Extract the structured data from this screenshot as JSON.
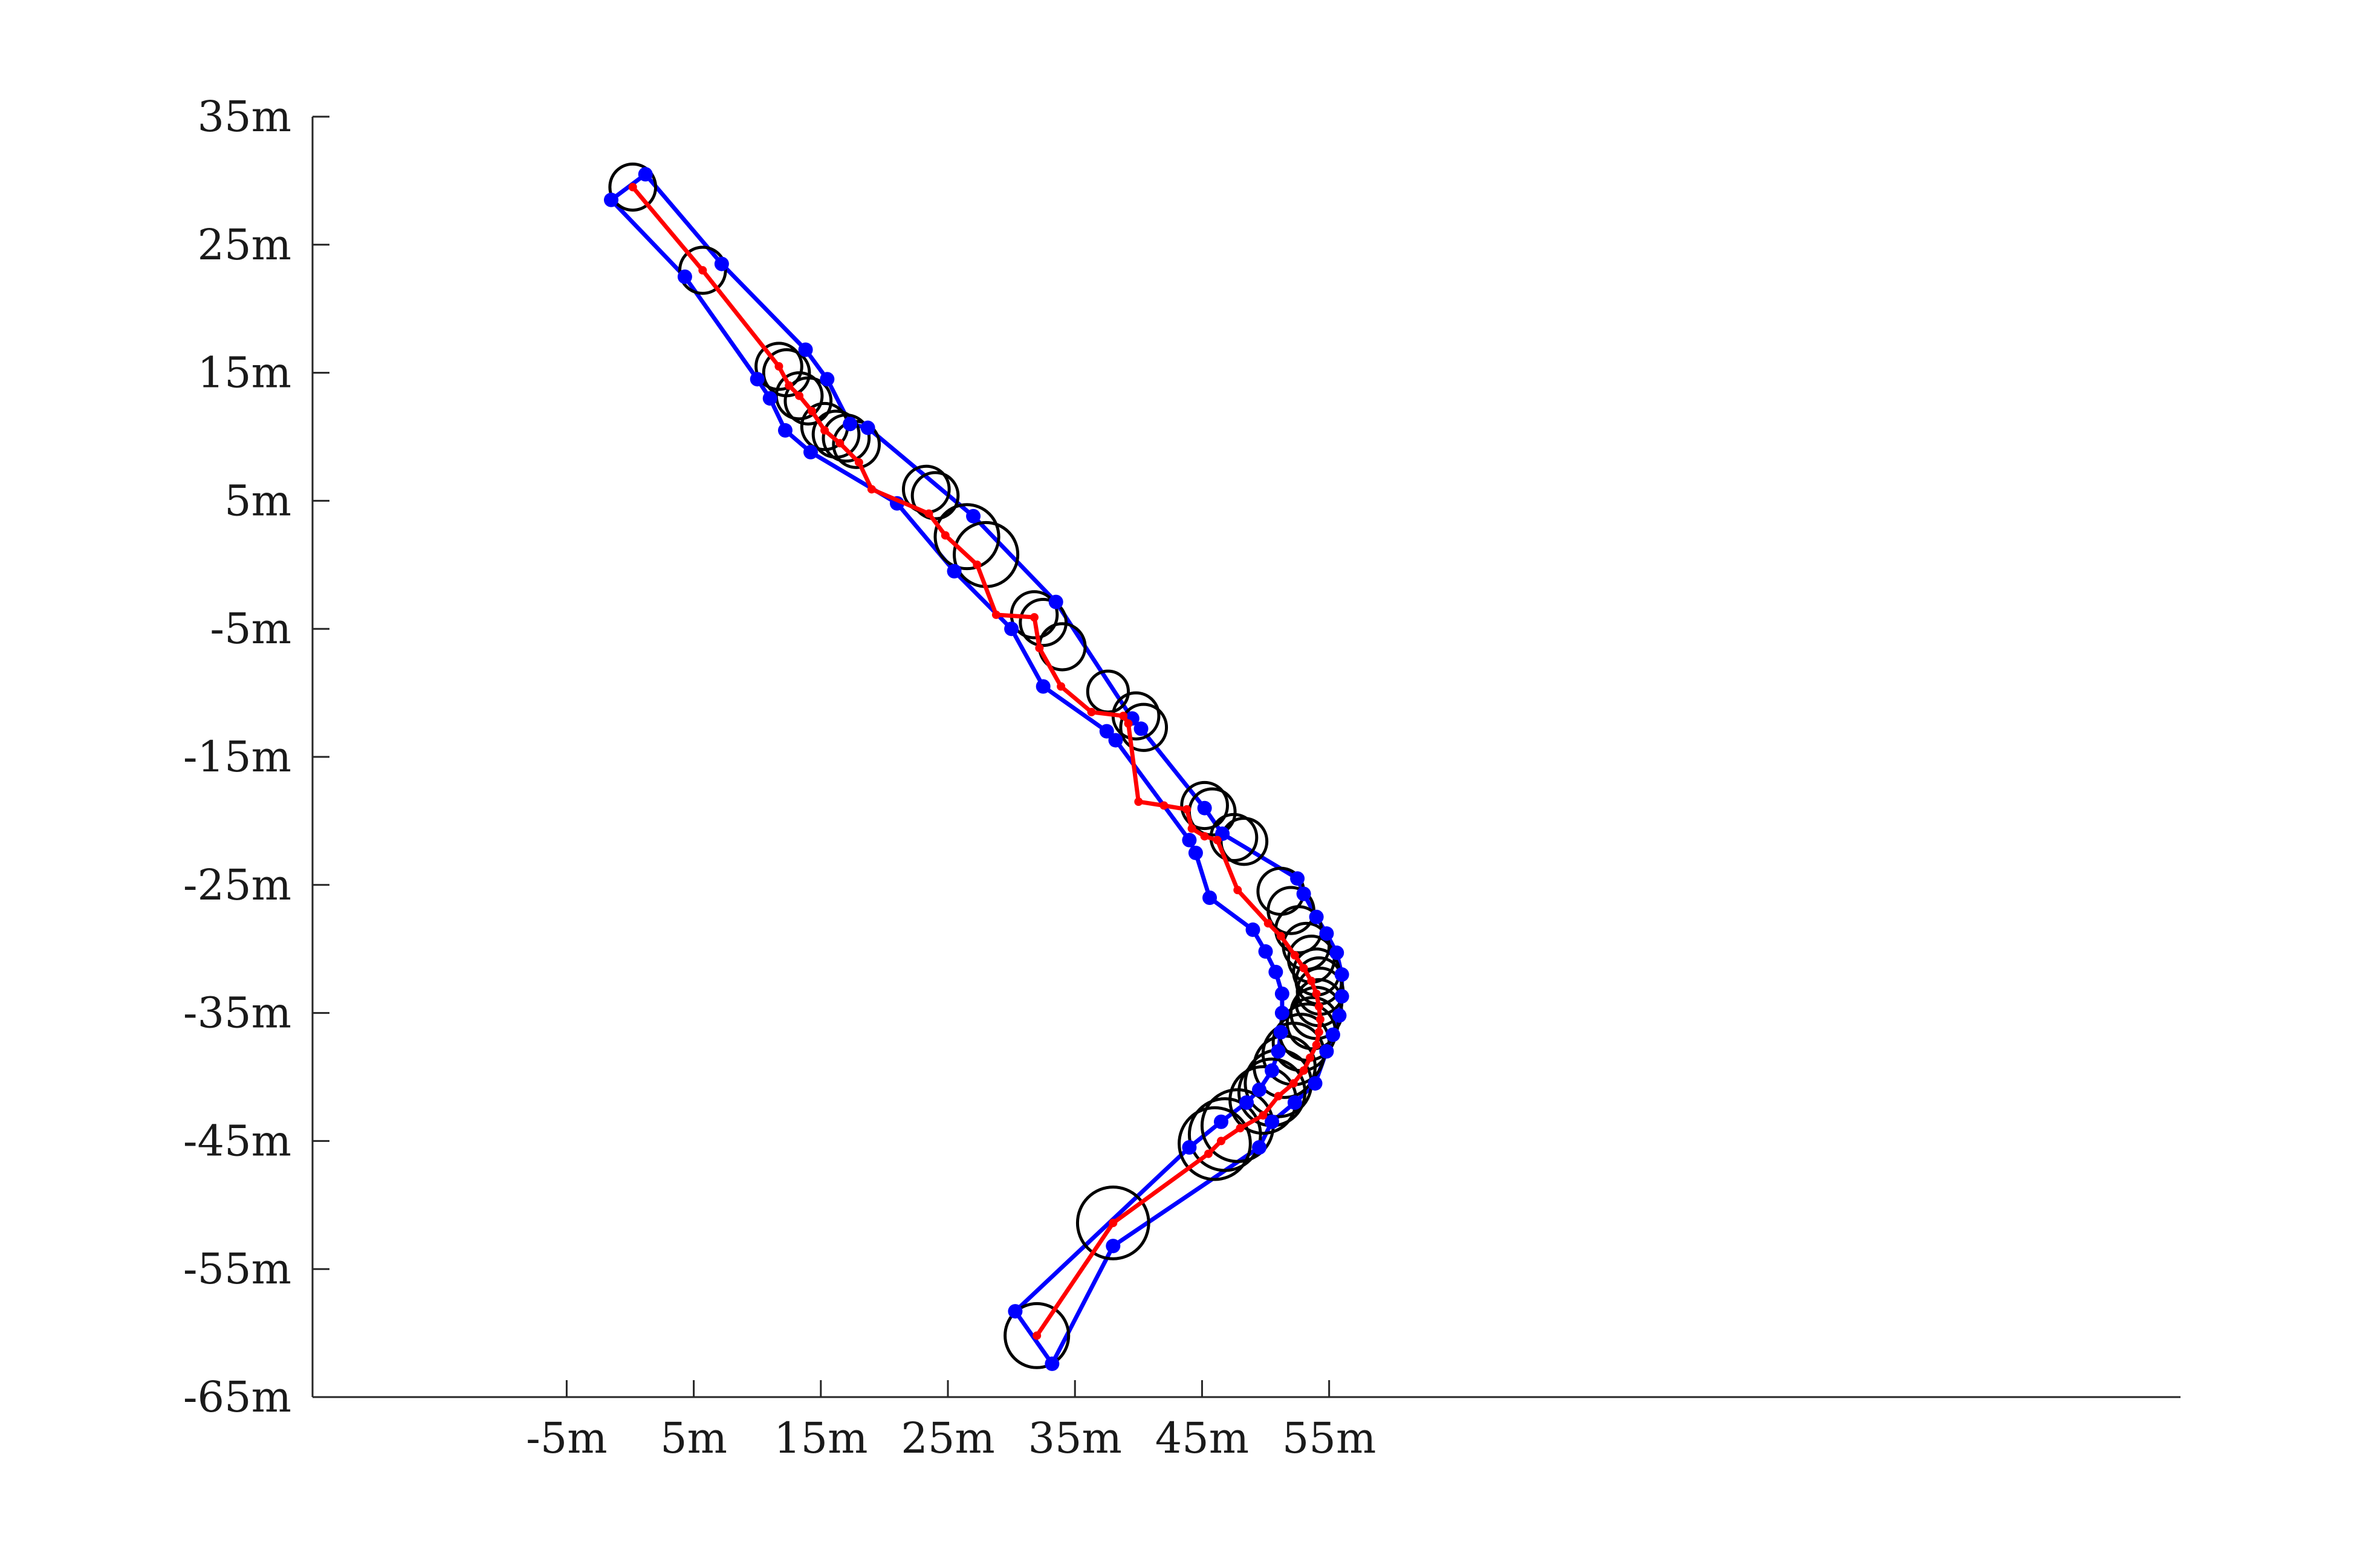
{
  "chart_data": {
    "type": "line",
    "title": "",
    "xlabel": "",
    "ylabel": "",
    "xlim": [
      -25,
      122
    ],
    "ylim": [
      -65,
      35
    ],
    "x_ticks": [
      -5,
      5,
      15,
      25,
      35,
      45,
      55
    ],
    "x_tick_labels": [
      "-5m",
      "5m",
      "15m",
      "25m",
      "35m",
      "45m",
      "55m"
    ],
    "y_ticks": [
      35,
      25,
      15,
      5,
      -5,
      -15,
      -25,
      -35,
      -45,
      -55,
      -65
    ],
    "y_tick_labels": [
      "35m",
      "25m",
      "15m",
      "5m",
      "-5m",
      "-15m",
      "-25m",
      "-35m",
      "-45m",
      "-55m",
      "-65m"
    ],
    "grid": false,
    "colors": {
      "centerline": "#ff0000",
      "boundary": "#0000ff",
      "circle": "#000000",
      "axis": "#262626"
    },
    "series": [
      {
        "role": "centerline",
        "x": [
          0.2,
          5.7,
          11.7,
          12.5,
          13.3,
          14.3,
          15.3,
          16.5,
          18.0,
          19.0,
          23.5,
          24.8,
          27.3,
          28.8,
          31.8,
          32.2,
          33.9,
          36.3,
          38.8,
          39.2,
          40.0,
          42.0,
          43.8,
          44.2,
          45.2,
          46.2,
          47.8,
          50.2,
          51.2,
          52.3,
          53.0,
          53.6,
          54.0,
          54.2,
          54.3,
          54.2,
          54.0,
          53.5,
          53.0,
          52.2,
          51.0,
          49.8,
          48.0,
          46.5,
          45.5,
          38.0,
          32.0
        ],
        "y": [
          29.5,
          23.0,
          15.5,
          14.0,
          13.2,
          12.0,
          10.5,
          9.5,
          8.0,
          5.9,
          4.0,
          2.3,
          0.0,
          -3.9,
          -4.1,
          -6.5,
          -9.5,
          -11.5,
          -11.8,
          -12.4,
          -18.5,
          -18.8,
          -19.1,
          -20.6,
          -21.2,
          -21.5,
          -25.4,
          -28.0,
          -29.0,
          -30.5,
          -31.5,
          -32.5,
          -33.5,
          -34.5,
          -35.5,
          -36.5,
          -37.5,
          -38.5,
          -39.5,
          -40.5,
          -41.5,
          -43.0,
          -44.0,
          -45.0,
          -46.0,
          -51.4,
          -60.2
        ]
      },
      {
        "role": "boundary-left",
        "x": [
          -1.5,
          4.3,
          10.0,
          11.0,
          12.2,
          14.2,
          21.0,
          25.5,
          30.0,
          32.5,
          37.5,
          38.2,
          44.0,
          44.5,
          45.6,
          49.0,
          50.0,
          50.8,
          51.3,
          51.3,
          51.2,
          51.0,
          50.5,
          49.5,
          48.5,
          46.5,
          44.0,
          30.3
        ],
        "y": [
          28.5,
          22.5,
          14.5,
          13.0,
          10.5,
          8.8,
          4.8,
          -0.5,
          -5.0,
          -9.5,
          -13.0,
          -13.7,
          -21.5,
          -22.5,
          -26.0,
          -28.5,
          -30.2,
          -31.8,
          -33.5,
          -35.0,
          -36.5,
          -38.0,
          -39.5,
          -41.0,
          -42.0,
          -43.5,
          -45.5,
          -58.3
        ]
      },
      {
        "role": "boundary-right",
        "x": [
          1.2,
          7.2,
          13.8,
          15.5,
          17.3,
          18.7,
          27.0,
          33.5,
          39.5,
          40.2,
          45.2,
          46.6,
          52.5,
          53.0,
          54.0,
          54.8,
          55.6,
          56.0,
          56.0,
          55.8,
          55.3,
          54.8,
          53.9,
          52.3,
          50.5,
          49.5,
          38.0,
          33.2
        ],
        "y": [
          30.5,
          23.5,
          16.8,
          14.5,
          11.0,
          10.7,
          3.8,
          -2.9,
          -12.0,
          -12.8,
          -19.0,
          -21.0,
          -24.5,
          -25.7,
          -27.5,
          -28.8,
          -30.3,
          -32.0,
          -33.7,
          -35.2,
          -36.7,
          -38.0,
          -40.5,
          -42.0,
          -43.5,
          -45.5,
          -53.2,
          -62.4
        ]
      }
    ],
    "circles": [
      {
        "x": 0.2,
        "y": 29.5,
        "r": 1.8
      },
      {
        "x": 5.7,
        "y": 23.0,
        "r": 1.8
      },
      {
        "x": 11.7,
        "y": 15.5,
        "r": 1.8
      },
      {
        "x": 12.3,
        "y": 15.0,
        "r": 1.8
      },
      {
        "x": 13.3,
        "y": 13.2,
        "r": 1.8
      },
      {
        "x": 14.0,
        "y": 12.8,
        "r": 1.8
      },
      {
        "x": 15.3,
        "y": 10.8,
        "r": 1.8
      },
      {
        "x": 16.2,
        "y": 10.2,
        "r": 1.8
      },
      {
        "x": 17.0,
        "y": 9.9,
        "r": 1.8
      },
      {
        "x": 17.8,
        "y": 9.4,
        "r": 1.8
      },
      {
        "x": 23.3,
        "y": 5.9,
        "r": 1.8
      },
      {
        "x": 24.0,
        "y": 5.4,
        "r": 1.8
      },
      {
        "x": 26.5,
        "y": 2.2,
        "r": 2.5
      },
      {
        "x": 28.0,
        "y": 0.8,
        "r": 2.5
      },
      {
        "x": 31.8,
        "y": -3.9,
        "r": 1.8
      },
      {
        "x": 32.5,
        "y": -4.5,
        "r": 1.8
      },
      {
        "x": 34.0,
        "y": -6.4,
        "r": 1.8
      },
      {
        "x": 37.6,
        "y": -9.9,
        "r": 1.6
      },
      {
        "x": 39.8,
        "y": -11.8,
        "r": 1.8
      },
      {
        "x": 40.4,
        "y": -12.7,
        "r": 1.8
      },
      {
        "x": 45.2,
        "y": -18.8,
        "r": 1.8
      },
      {
        "x": 45.8,
        "y": -19.3,
        "r": 1.8
      },
      {
        "x": 47.5,
        "y": -21.3,
        "r": 1.8
      },
      {
        "x": 48.3,
        "y": -21.6,
        "r": 1.8
      },
      {
        "x": 51.2,
        "y": -25.5,
        "r": 1.8
      },
      {
        "x": 52.0,
        "y": -27.0,
        "r": 1.8
      },
      {
        "x": 52.6,
        "y": -28.5,
        "r": 1.8
      },
      {
        "x": 53.2,
        "y": -29.8,
        "r": 1.8
      },
      {
        "x": 53.6,
        "y": -30.8,
        "r": 1.8
      },
      {
        "x": 54.0,
        "y": -31.8,
        "r": 1.8
      },
      {
        "x": 54.2,
        "y": -32.5,
        "r": 1.8
      },
      {
        "x": 54.3,
        "y": -33.3,
        "r": 1.8
      },
      {
        "x": 54.2,
        "y": -34.2,
        "r": 1.8
      },
      {
        "x": 54.0,
        "y": -35.0,
        "r": 2.0
      },
      {
        "x": 53.7,
        "y": -35.8,
        "r": 2.0
      },
      {
        "x": 53.3,
        "y": -36.5,
        "r": 2.2
      },
      {
        "x": 52.8,
        "y": -37.3,
        "r": 2.2
      },
      {
        "x": 52.2,
        "y": -38.2,
        "r": 2.4
      },
      {
        "x": 51.5,
        "y": -39.2,
        "r": 2.4
      },
      {
        "x": 51.0,
        "y": -40.5,
        "r": 2.6
      },
      {
        "x": 50.5,
        "y": -41.2,
        "r": 2.6
      },
      {
        "x": 49.8,
        "y": -41.8,
        "r": 2.6
      },
      {
        "x": 47.8,
        "y": -43.8,
        "r": 2.8
      },
      {
        "x": 46.8,
        "y": -44.5,
        "r": 2.8
      },
      {
        "x": 46.0,
        "y": -45.2,
        "r": 2.8
      },
      {
        "x": 38.0,
        "y": -51.4,
        "r": 2.8
      },
      {
        "x": 32.0,
        "y": -60.2,
        "r": 2.5
      }
    ]
  }
}
